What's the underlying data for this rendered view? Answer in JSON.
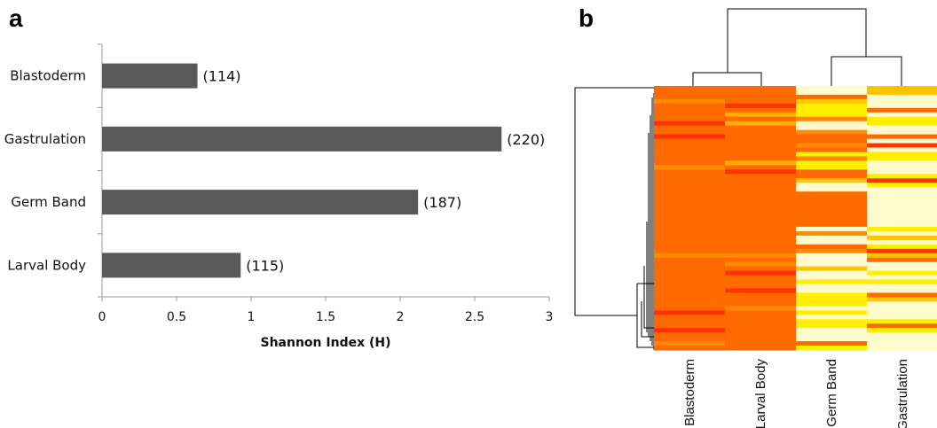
{
  "panels": {
    "a": "a",
    "b": "b"
  },
  "chart_data": [
    {
      "type": "bar",
      "orientation": "horizontal",
      "categories": [
        "Blastoderm",
        "Gastrulation",
        "Germ Band",
        "Larval Body"
      ],
      "values": [
        0.64,
        2.68,
        2.12,
        0.93
      ],
      "data_labels": [
        "(114)",
        "(220)",
        "(187)",
        "(115)"
      ],
      "xlabel": "Shannon Index (H)",
      "xlim": [
        0,
        3
      ],
      "xticks": [
        "0",
        "0.5",
        "1",
        "1.5",
        "2",
        "2.5",
        "3"
      ],
      "bar_color": "#595959",
      "grid": false
    },
    {
      "type": "heatmap",
      "columns": [
        "Blastoderm",
        "Larval Body",
        "Germ Band",
        "Gastrulation"
      ],
      "colors": [
        "#ff6a00",
        "#ffee00",
        "#fffbcc"
      ],
      "dendrograms": "top and left"
    }
  ]
}
